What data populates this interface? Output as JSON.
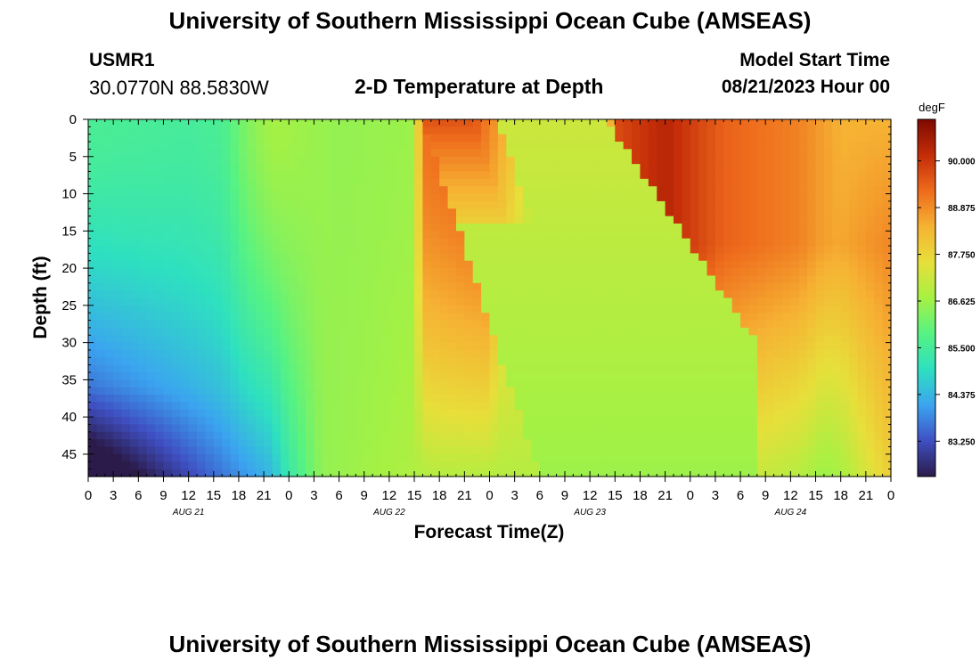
{
  "header": {
    "title": "University of Southern Mississippi Ocean Cube (AMSEAS)",
    "station_id": "USMR1",
    "coordinates": "30.0770N  88.5830W",
    "plot_title": "2-D Temperature at Depth",
    "start_label": "Model Start Time",
    "start_value": "08/21/2023 Hour 00",
    "bottom_title": "University of Southern Mississippi Ocean Cube (AMSEAS)"
  },
  "colors": {
    "colormap": [
      "#2b1b4a",
      "#3f4fc2",
      "#3ba4f0",
      "#2ee0c0",
      "#56f283",
      "#a6f143",
      "#e7df3a",
      "#f6b233",
      "#ee6b1c",
      "#c32c08",
      "#7e0a02"
    ]
  },
  "chart_data": {
    "type": "heatmap",
    "title": "2-D Temperature at Depth",
    "xlabel": "Forecast Time(Z)",
    "ylabel": "Depth (ft)",
    "x_range_hours": [
      0,
      96
    ],
    "y_range_ft": [
      0,
      48
    ],
    "x_tick_labels": [
      "0",
      "3",
      "6",
      "9",
      "12",
      "15",
      "18",
      "21",
      "0",
      "3",
      "6",
      "9",
      "12",
      "15",
      "18",
      "21",
      "0",
      "3",
      "6",
      "9",
      "12",
      "15",
      "18",
      "21",
      "0",
      "3",
      "6",
      "9",
      "12",
      "15",
      "18",
      "21",
      "0"
    ],
    "x_day_labels": [
      {
        "label": "AUG 21",
        "hour": 12
      },
      {
        "label": "AUG 22",
        "hour": 36
      },
      {
        "label": "AUG 23",
        "hour": 60
      },
      {
        "label": "AUG 24",
        "hour": 84
      }
    ],
    "y_ticks": [
      0,
      5,
      10,
      15,
      20,
      25,
      30,
      35,
      40,
      45
    ],
    "colorbar": {
      "unit": "degF",
      "min": 82.4,
      "max": 91.0,
      "ticks": [
        "83.250",
        "84.375",
        "85.500",
        "86.625",
        "87.750",
        "88.875",
        "90.000"
      ]
    },
    "description_profiles": {
      "surface_degF_by_hour": [
        [
          0,
          85.6
        ],
        [
          12,
          85.5
        ],
        [
          16,
          85.6
        ],
        [
          19,
          86.3
        ],
        [
          22,
          86.7
        ],
        [
          30,
          86.5
        ],
        [
          39,
          86.6
        ],
        [
          40,
          89.2
        ],
        [
          48,
          89.6
        ],
        [
          49,
          88.1
        ],
        [
          58,
          87.2
        ],
        [
          62,
          87.2
        ],
        [
          63,
          89.7
        ],
        [
          69,
          90.3
        ],
        [
          76,
          89.4
        ],
        [
          85,
          89.0
        ],
        [
          90,
          88.4
        ],
        [
          96,
          88.4
        ]
      ],
      "bottom_degF_by_hour": [
        [
          0,
          82.5
        ],
        [
          12,
          83.6
        ],
        [
          22,
          84.4
        ],
        [
          24,
          85.3
        ],
        [
          28,
          86.5
        ],
        [
          42,
          86.9
        ],
        [
          52,
          86.9
        ],
        [
          60,
          87.0
        ],
        [
          66,
          87.2
        ],
        [
          72,
          87.4
        ],
        [
          84,
          87.6
        ],
        [
          90,
          88.1
        ],
        [
          96,
          88.6
        ]
      ],
      "warm_front_surface_hour": 40,
      "warm_front_bottom_hour": 54,
      "second_front_surface_hour": 62,
      "second_front_deep_hour": 80
    }
  }
}
